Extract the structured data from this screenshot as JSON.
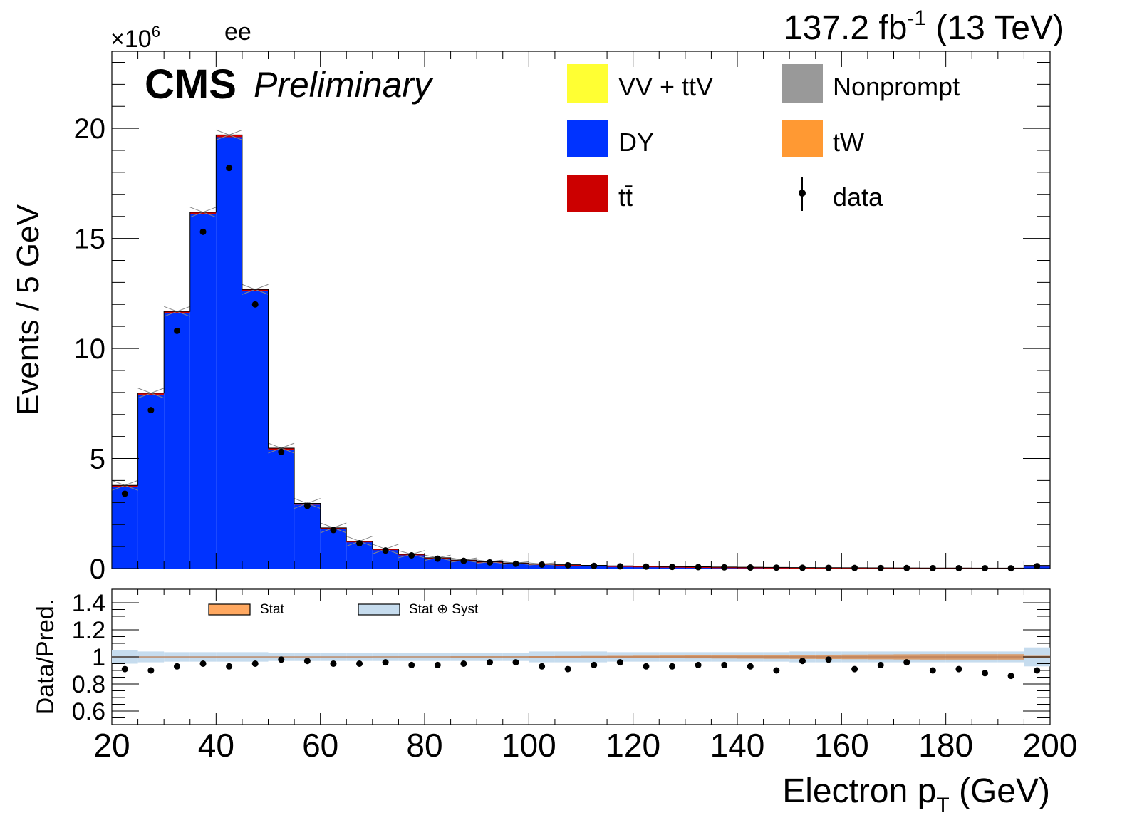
{
  "header": {
    "lumi_value": "137.2 fb",
    "lumi_exp": "-1",
    "energy": "(13 TeV)",
    "channel": "ee",
    "exponent_base": "×10",
    "exponent_power": "6",
    "cms_label": "CMS",
    "prelim_label": "Preliminary"
  },
  "legend": {
    "items": [
      {
        "label": "VV + ttV",
        "color": "#ffff33"
      },
      {
        "label": "Nonprompt",
        "color": "#999999"
      },
      {
        "label": "DY",
        "color": "#0033ff"
      },
      {
        "label": "tW",
        "color": "#ff9933"
      },
      {
        "label": "tt̄",
        "color": "#cc0000"
      },
      {
        "label": "data",
        "color": "#000000"
      }
    ]
  },
  "ratio_legend": {
    "stat": "Stat",
    "stat_syst": "Stat ⊕ Syst",
    "stat_color": "#ffa860",
    "syst_color": "#c6dcee"
  },
  "chart_data": {
    "type": "bar",
    "xlabel_main": "Electron p",
    "xlabel_sub": "T",
    "xlabel_unit": "(GeV)",
    "ylabel": "Events / 5 GeV",
    "ratio_ylabel": "Data/Pred.",
    "xlim": [
      20,
      200
    ],
    "ylim": [
      0,
      23.5
    ],
    "ratio_ylim": [
      0.5,
      1.5
    ],
    "x_ticks": [
      "20",
      "40",
      "60",
      "80",
      "100",
      "120",
      "140",
      "160",
      "180",
      "200"
    ],
    "y_ticks": [
      "0",
      "5",
      "10",
      "15",
      "20"
    ],
    "ratio_ticks": [
      "0.6",
      "0.8",
      "1",
      "1.2",
      "1.4"
    ],
    "bin_edges": [
      20,
      25,
      30,
      35,
      40,
      45,
      50,
      55,
      60,
      65,
      70,
      75,
      80,
      85,
      90,
      95,
      100,
      105,
      110,
      115,
      120,
      125,
      130,
      135,
      140,
      145,
      150,
      155,
      160,
      165,
      170,
      175,
      180,
      185,
      190,
      195,
      200
    ],
    "series": [
      {
        "name": "DY",
        "values": [
          3.7,
          7.9,
          11.6,
          16.1,
          19.6,
          12.6,
          5.4,
          2.9,
          1.8,
          1.2,
          0.85,
          0.62,
          0.46,
          0.36,
          0.29,
          0.23,
          0.19,
          0.16,
          0.13,
          0.11,
          0.095,
          0.08,
          0.07,
          0.06,
          0.052,
          0.046,
          0.04,
          0.035,
          0.031,
          0.028,
          0.025,
          0.022,
          0.02,
          0.018,
          0.016,
          0.12
        ]
      },
      {
        "name": "tt̄",
        "values": [
          0.08,
          0.07,
          0.08,
          0.09,
          0.1,
          0.08,
          0.07,
          0.06,
          0.05,
          0.04,
          0.035,
          0.03,
          0.028,
          0.025,
          0.022,
          0.02,
          0.018,
          0.016,
          0.014,
          0.012,
          0.011,
          0.01,
          0.009,
          0.008,
          0.007,
          0.006,
          0.006,
          0.005,
          0.005,
          0.004,
          0.004,
          0.004,
          0.003,
          0.003,
          0.003,
          0.02
        ]
      },
      {
        "name": "data",
        "values": [
          3.4,
          7.2,
          10.8,
          15.3,
          18.2,
          12.0,
          5.3,
          2.85,
          1.75,
          1.15,
          0.82,
          0.6,
          0.45,
          0.35,
          0.28,
          0.22,
          0.18,
          0.15,
          0.12,
          0.1,
          0.09,
          0.075,
          0.065,
          0.056,
          0.048,
          0.042,
          0.036,
          0.032,
          0.028,
          0.026,
          0.023,
          0.02,
          0.018,
          0.016,
          0.014,
          0.11
        ]
      }
    ],
    "ratio": {
      "values": [
        0.91,
        0.9,
        0.93,
        0.95,
        0.93,
        0.95,
        0.98,
        0.97,
        0.95,
        0.95,
        0.96,
        0.94,
        0.94,
        0.95,
        0.96,
        0.96,
        0.93,
        0.91,
        0.94,
        0.96,
        0.93,
        0.93,
        0.94,
        0.94,
        0.93,
        0.9,
        0.97,
        0.98,
        0.91,
        0.94,
        0.96,
        0.9,
        0.91,
        0.88,
        0.86,
        0.9
      ],
      "syst_band": [
        0.05,
        0.04,
        0.035,
        0.035,
        0.035,
        0.035,
        0.03,
        0.03,
        0.03,
        0.03,
        0.03,
        0.03,
        0.03,
        0.03,
        0.03,
        0.03,
        0.04,
        0.04,
        0.04,
        0.035,
        0.035,
        0.035,
        0.035,
        0.035,
        0.035,
        0.035,
        0.04,
        0.04,
        0.04,
        0.04,
        0.04,
        0.04,
        0.04,
        0.04,
        0.04,
        0.07
      ],
      "stat_band": [
        0.003,
        0.002,
        0.002,
        0.002,
        0.002,
        0.002,
        0.002,
        0.002,
        0.002,
        0.002,
        0.003,
        0.003,
        0.003,
        0.004,
        0.004,
        0.004,
        0.005,
        0.006,
        0.007,
        0.008,
        0.009,
        0.01,
        0.011,
        0.012,
        0.013,
        0.014,
        0.015,
        0.016,
        0.017,
        0.018,
        0.019,
        0.02,
        0.02,
        0.02,
        0.02,
        0.008
      ]
    }
  }
}
